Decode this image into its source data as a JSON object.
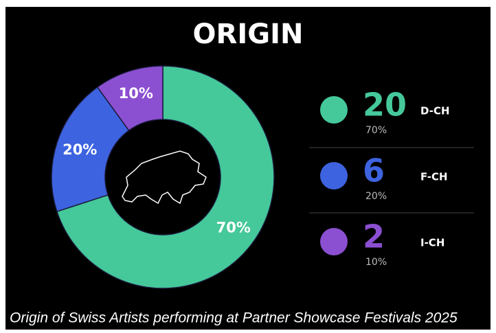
{
  "chart_data": {
    "type": "pie",
    "title": "ORIGIN",
    "categories": [
      "D-CH",
      "F-CH",
      "I-CH"
    ],
    "values": [
      70,
      20,
      10
    ],
    "value_labels": [
      "70%",
      "20%",
      "10%"
    ],
    "counts": [
      20,
      6,
      2
    ],
    "colors": [
      "#45c89a",
      "#3d63e0",
      "#8b4fd1"
    ],
    "caption": "Origin of Swiss Artists performing at Partner Showcase Festivals 2025"
  }
}
